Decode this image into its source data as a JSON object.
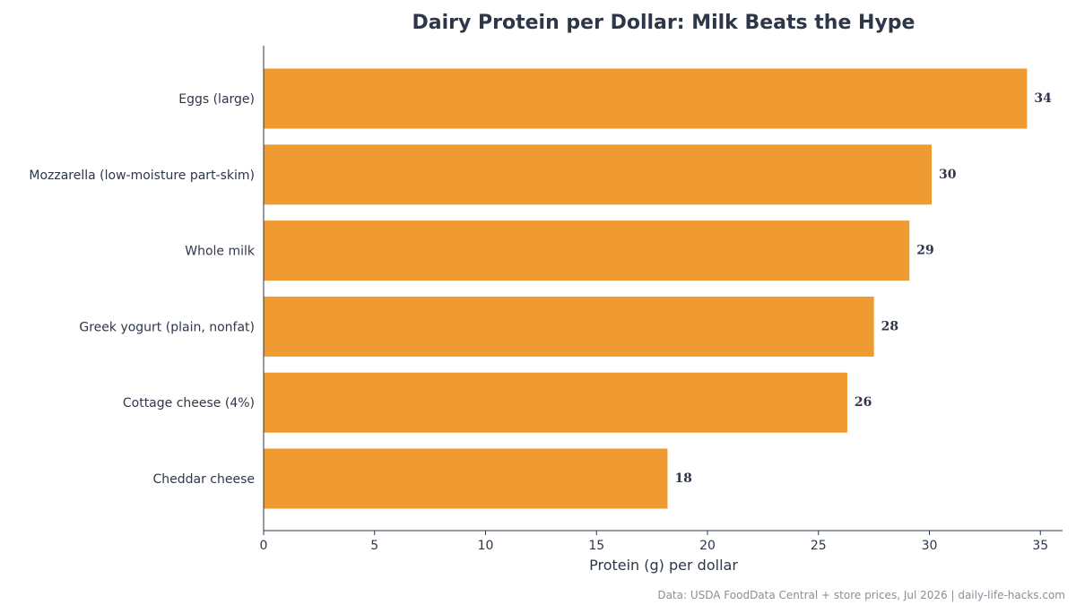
{
  "chart_data": {
    "type": "bar",
    "orientation": "horizontal",
    "title": "Dairy Protein per Dollar: Milk Beats the Hype",
    "xlabel": "Protein (g) per dollar",
    "ylabel": "",
    "categories": [
      "Eggs (large)",
      "Mozzarella (low-moisture part-skim)",
      "Whole milk",
      "Greek yogurt (plain, nonfat)",
      "Cottage cheese (4%)",
      "Cheddar cheese"
    ],
    "values": [
      34.4,
      30.1,
      29.1,
      27.5,
      26.3,
      18.2
    ],
    "value_labels": [
      "34",
      "30",
      "29",
      "28",
      "26",
      "18"
    ],
    "xlim": [
      0,
      36
    ],
    "xticks": [
      0,
      5,
      10,
      15,
      20,
      25,
      30,
      35
    ],
    "grid": false,
    "bar_color": "#f09a32",
    "source": "Data: USDA FoodData Central + store prices, Jul 2026 | daily-life-hacks.com"
  }
}
